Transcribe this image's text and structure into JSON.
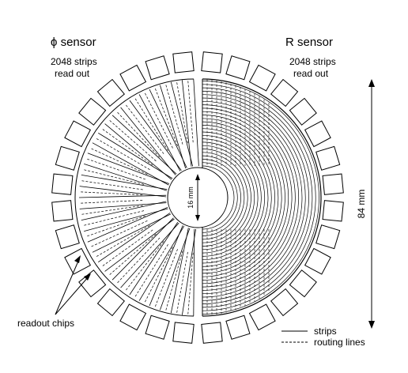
{
  "labels": {
    "phi_title": "ϕ sensor",
    "phi_strips": "2048 strips",
    "phi_readout": "read out",
    "r_title": "R sensor",
    "r_strips": "2048 strips",
    "r_readout": "read out",
    "inner_dim": "16 mm",
    "outer_dim": "84 mm",
    "chips": "readout chips"
  },
  "legend": {
    "solid": "strips",
    "dashed": "routing lines"
  },
  "colors": {
    "ink": "#000000",
    "paper": "#ffffff"
  }
}
